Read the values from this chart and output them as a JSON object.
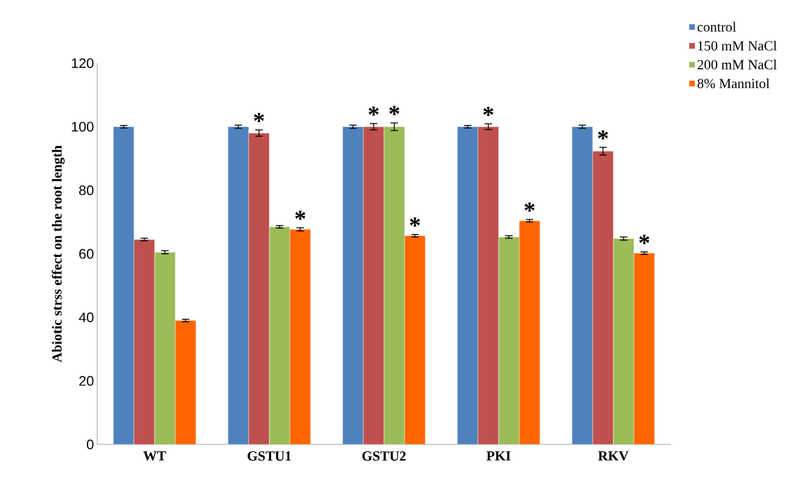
{
  "chart_data": {
    "type": "bar",
    "ylabel": "Abiotic strss effect on the root length",
    "categories": [
      "WT",
      "GSTU1",
      "GSTU2",
      "PKI",
      "RKV"
    ],
    "series": [
      {
        "name": "control",
        "color": "#4f81bd",
        "values": [
          100,
          100,
          100,
          100,
          100
        ],
        "errors": [
          0.4,
          0.5,
          0.5,
          0.4,
          0.5
        ]
      },
      {
        "name": "150 mM NaCl",
        "color": "#c0504d",
        "values": [
          64.5,
          98,
          100,
          100,
          92.3
        ],
        "errors": [
          0.4,
          1,
          1,
          0.9,
          1.2
        ],
        "value_labels": [
          null,
          "*",
          "*",
          "*",
          "*"
        ]
      },
      {
        "name": "200 mM NaCl",
        "color": "#9bbb59",
        "values": [
          60.5,
          68.5,
          100,
          65.3,
          64.8
        ],
        "errors": [
          0.5,
          0.4,
          1.2,
          0.4,
          0.5
        ],
        "value_labels": [
          null,
          null,
          "*",
          null,
          null
        ]
      },
      {
        "name": "8% Mannitol",
        "color": "#ff6600",
        "values": [
          39,
          67.7,
          65.7,
          70.4,
          60.2
        ],
        "errors": [
          0.4,
          0.5,
          0.4,
          0.4,
          0.4
        ],
        "value_labels": [
          null,
          "*",
          "*",
          "*",
          "*"
        ]
      }
    ],
    "ylim": [
      0,
      120
    ],
    "yticks": [
      0,
      20,
      40,
      60,
      80,
      100,
      120
    ],
    "grid": false,
    "legend": "top right"
  }
}
